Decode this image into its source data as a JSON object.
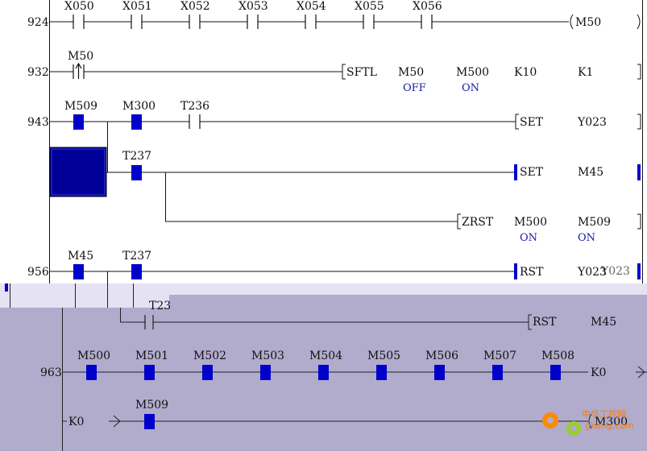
{
  "colors": {
    "ladder_line": "#111111",
    "contact_highlight": "#0000cc",
    "selection_block": "#000099",
    "state_text": "#1a1aa6",
    "lower_window_bg": "#b1abcc",
    "lower_window_strip": "#e4e2f3",
    "watermark": "#ff7a00"
  },
  "rungs": [
    {
      "step": "924",
      "contacts": [
        "X050",
        "X051",
        "X052",
        "X053",
        "X054",
        "X055",
        "X056"
      ],
      "coil": "M50"
    },
    {
      "step": "932",
      "pulse_contact": "M50",
      "instruction": {
        "name": "SFTL",
        "operands": [
          "M50",
          "M500",
          "K10",
          "K1"
        ],
        "states": [
          "OFF",
          "ON",
          "",
          ""
        ]
      }
    },
    {
      "step": "943",
      "contacts": [
        "M509",
        "M300",
        "T236"
      ],
      "instruction": {
        "name": "SET",
        "operand": "Y023"
      }
    },
    {
      "branch_contact": "T237",
      "instruction": {
        "name": "SET",
        "operand": "M45"
      },
      "sub_instruction": {
        "name": "ZRST",
        "operands": [
          "M500",
          "M509"
        ],
        "states": [
          "ON",
          "ON"
        ]
      }
    },
    {
      "step": "956",
      "contacts": [
        "M45",
        "T237"
      ],
      "instruction": {
        "name": "RST",
        "operand": "Y023"
      },
      "overlap_text": "Y023"
    }
  ],
  "lower": {
    "partial_contact": "T23",
    "rst": {
      "name": "RST",
      "operand": "M45"
    },
    "step": "963",
    "contacts": [
      "M500",
      "M501",
      "M502",
      "M503",
      "M504",
      "M505",
      "M506",
      "M507",
      "M508"
    ],
    "output": "K0",
    "next_input": "K0",
    "next_contact": "M509",
    "next_output": "M300"
  },
  "watermark": {
    "text1": "中华工控网",
    "text2": "gkong.com"
  }
}
